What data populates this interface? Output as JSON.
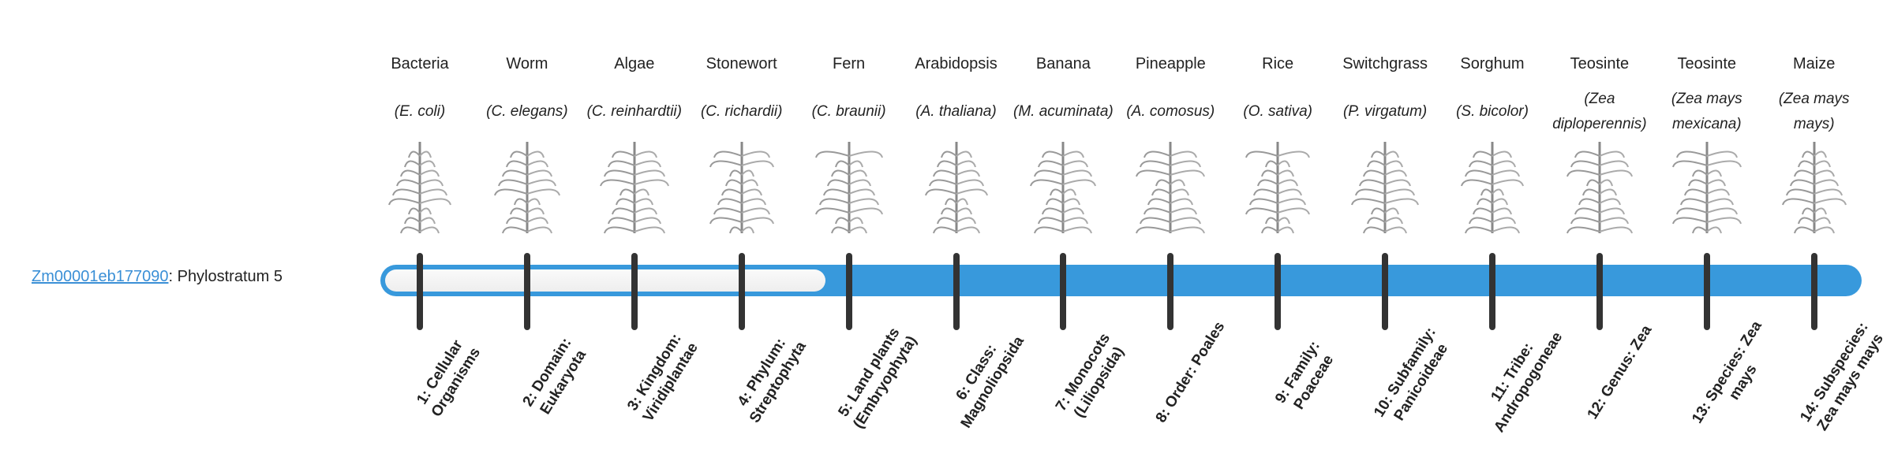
{
  "gene": {
    "id": "Zm00001eb177090",
    "suffix": ": Phylostratum 5",
    "phylostratum": 5
  },
  "colors": {
    "bar": "#3899dc",
    "tick": "#333333",
    "link": "#3a8fd6"
  },
  "organisms": [
    {
      "common": "Bacteria",
      "scientific": "(E. coli)",
      "stratum": "1: Cellular Organisms",
      "image": "bacteria-image"
    },
    {
      "common": "Worm",
      "scientific": "(C. elegans)",
      "stratum": "2: Domain: Eukaryota",
      "image": "worm-image"
    },
    {
      "common": "Algae",
      "scientific": "(C. reinhardtii)",
      "stratum": "3: Kingdom: Viridiplantae",
      "image": "algae-image"
    },
    {
      "common": "Stonewort",
      "scientific": "(C. richardii)",
      "stratum": "4: Phylum: Streptophyta",
      "image": "stonewort-image"
    },
    {
      "common": "Fern",
      "scientific": "(C. braunii)",
      "stratum": "5: Land plants (Embryophyta)",
      "image": "fern-image"
    },
    {
      "common": "Arabidopsis",
      "scientific": "(A. thaliana)",
      "stratum": "6: Class: Magnoliopsida",
      "image": "arabidopsis-image"
    },
    {
      "common": "Banana",
      "scientific": "(M. acuminata)",
      "stratum": "7: Monocots (Liliopsida)",
      "image": "banana-image"
    },
    {
      "common": "Pineapple",
      "scientific": "(A. comosus)",
      "stratum": "8: Order: Poales",
      "image": "pineapple-image"
    },
    {
      "common": "Rice",
      "scientific": "(O. sativa)",
      "stratum": "9: Family: Poaceae",
      "image": "rice-image"
    },
    {
      "common": "Switchgrass",
      "scientific": "(P. virgatum)",
      "stratum": "10: Subfamily: Panicoideae",
      "image": "switchgrass-image"
    },
    {
      "common": "Sorghum",
      "scientific": "(S. bicolor)",
      "stratum": "11: Tribe: Andropogoneae",
      "image": "sorghum-image"
    },
    {
      "common": "Teosinte",
      "scientific": "(Zea diploperennis)",
      "stratum": "12: Genus: Zea",
      "image": "teosinte-image"
    },
    {
      "common": "Teosinte",
      "scientific": "(Zea mays mexicana)",
      "stratum": "13: Species: Zea mays",
      "image": "teosinte-mexicana-image"
    },
    {
      "common": "Maize",
      "scientific": "(Zea mays mays)",
      "stratum": "14: Subspecies: Zea mays mays",
      "image": "maize-image"
    }
  ]
}
